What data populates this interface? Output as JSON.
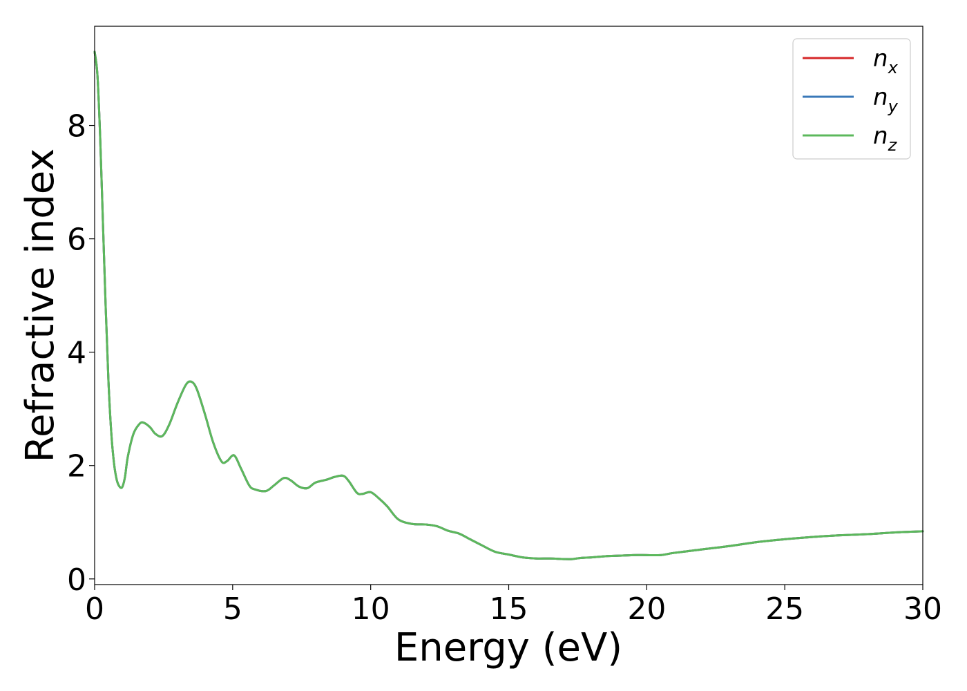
{
  "chart_data": {
    "type": "line",
    "xlabel": "Energy (eV)",
    "ylabel": "Refractive index",
    "xlim": [
      0,
      30
    ],
    "ylim": [
      -0.1,
      9.75
    ],
    "xticks": [
      0,
      5,
      10,
      15,
      20,
      25,
      30
    ],
    "xtick_labels": [
      "0",
      "5",
      "10",
      "15",
      "20",
      "25",
      "30"
    ],
    "yticks": [
      0,
      2,
      4,
      6,
      8
    ],
    "ytick_labels": [
      "0",
      "2",
      "4",
      "6",
      "8"
    ],
    "grid": false,
    "legend_position": "top-right",
    "x": [
      0,
      0.1,
      0.2,
      0.3,
      0.4,
      0.5,
      0.6,
      0.7,
      0.8,
      0.9,
      1.0,
      1.1,
      1.2,
      1.4,
      1.6,
      1.75,
      2.0,
      2.2,
      2.45,
      2.7,
      3.0,
      3.3,
      3.5,
      3.7,
      4.0,
      4.3,
      4.6,
      4.8,
      5.05,
      5.3,
      5.6,
      5.8,
      6.2,
      6.5,
      6.85,
      7.1,
      7.4,
      7.7,
      8.0,
      8.4,
      8.7,
      9.0,
      9.2,
      9.5,
      9.7,
      10.0,
      10.3,
      10.6,
      11.0,
      11.5,
      12.0,
      12.4,
      12.8,
      13.2,
      13.6,
      14.0,
      14.5,
      15.0,
      15.5,
      16.0,
      16.5,
      17.0,
      17.3,
      17.6,
      18.0,
      18.5,
      19.0,
      19.5,
      20.0,
      20.5,
      21.0,
      22.0,
      23.0,
      24.0,
      25.0,
      26.0,
      27.0,
      28.0,
      29.0,
      30.0
    ],
    "series": [
      {
        "name": "n_x",
        "color": "#d62728",
        "values": [
          9.3,
          8.9,
          7.8,
          6.3,
          4.8,
          3.5,
          2.6,
          2.05,
          1.75,
          1.63,
          1.62,
          1.8,
          2.15,
          2.55,
          2.72,
          2.76,
          2.68,
          2.56,
          2.52,
          2.72,
          3.1,
          3.42,
          3.48,
          3.35,
          2.9,
          2.4,
          2.07,
          2.08,
          2.18,
          1.95,
          1.65,
          1.58,
          1.55,
          1.65,
          1.78,
          1.74,
          1.63,
          1.6,
          1.7,
          1.75,
          1.8,
          1.82,
          1.73,
          1.52,
          1.5,
          1.53,
          1.42,
          1.28,
          1.05,
          0.97,
          0.96,
          0.93,
          0.85,
          0.8,
          0.7,
          0.6,
          0.48,
          0.43,
          0.38,
          0.36,
          0.36,
          0.35,
          0.35,
          0.37,
          0.38,
          0.4,
          0.41,
          0.42,
          0.42,
          0.42,
          0.46,
          0.52,
          0.58,
          0.65,
          0.7,
          0.74,
          0.77,
          0.79,
          0.82,
          0.84
        ]
      },
      {
        "name": "n_y",
        "color": "#3a78b8",
        "values": [
          9.3,
          8.9,
          7.8,
          6.3,
          4.8,
          3.5,
          2.6,
          2.05,
          1.75,
          1.63,
          1.62,
          1.8,
          2.15,
          2.55,
          2.72,
          2.76,
          2.68,
          2.56,
          2.52,
          2.72,
          3.1,
          3.42,
          3.48,
          3.35,
          2.9,
          2.4,
          2.07,
          2.08,
          2.18,
          1.95,
          1.65,
          1.58,
          1.55,
          1.65,
          1.78,
          1.74,
          1.63,
          1.6,
          1.7,
          1.75,
          1.8,
          1.82,
          1.73,
          1.52,
          1.5,
          1.53,
          1.42,
          1.28,
          1.05,
          0.97,
          0.96,
          0.93,
          0.85,
          0.8,
          0.7,
          0.6,
          0.48,
          0.43,
          0.38,
          0.36,
          0.36,
          0.35,
          0.35,
          0.37,
          0.38,
          0.4,
          0.41,
          0.42,
          0.42,
          0.42,
          0.46,
          0.52,
          0.58,
          0.65,
          0.7,
          0.74,
          0.77,
          0.79,
          0.82,
          0.84
        ]
      },
      {
        "name": "n_z",
        "color": "#5cb85c",
        "values": [
          9.3,
          8.9,
          7.8,
          6.3,
          4.8,
          3.5,
          2.6,
          2.05,
          1.75,
          1.63,
          1.62,
          1.8,
          2.15,
          2.55,
          2.72,
          2.76,
          2.68,
          2.56,
          2.52,
          2.72,
          3.1,
          3.42,
          3.48,
          3.35,
          2.9,
          2.4,
          2.07,
          2.08,
          2.18,
          1.95,
          1.65,
          1.58,
          1.55,
          1.65,
          1.78,
          1.74,
          1.63,
          1.6,
          1.7,
          1.75,
          1.8,
          1.82,
          1.73,
          1.52,
          1.5,
          1.53,
          1.42,
          1.28,
          1.05,
          0.97,
          0.96,
          0.93,
          0.85,
          0.8,
          0.7,
          0.6,
          0.48,
          0.43,
          0.38,
          0.36,
          0.36,
          0.35,
          0.35,
          0.37,
          0.38,
          0.4,
          0.41,
          0.42,
          0.42,
          0.42,
          0.46,
          0.52,
          0.58,
          0.65,
          0.7,
          0.74,
          0.77,
          0.79,
          0.82,
          0.84
        ]
      }
    ],
    "legend": [
      {
        "base": "n",
        "sub": "x",
        "color": "#d62728"
      },
      {
        "base": "n",
        "sub": "y",
        "color": "#3a78b8"
      },
      {
        "base": "n",
        "sub": "z",
        "color": "#5cb85c"
      }
    ]
  }
}
